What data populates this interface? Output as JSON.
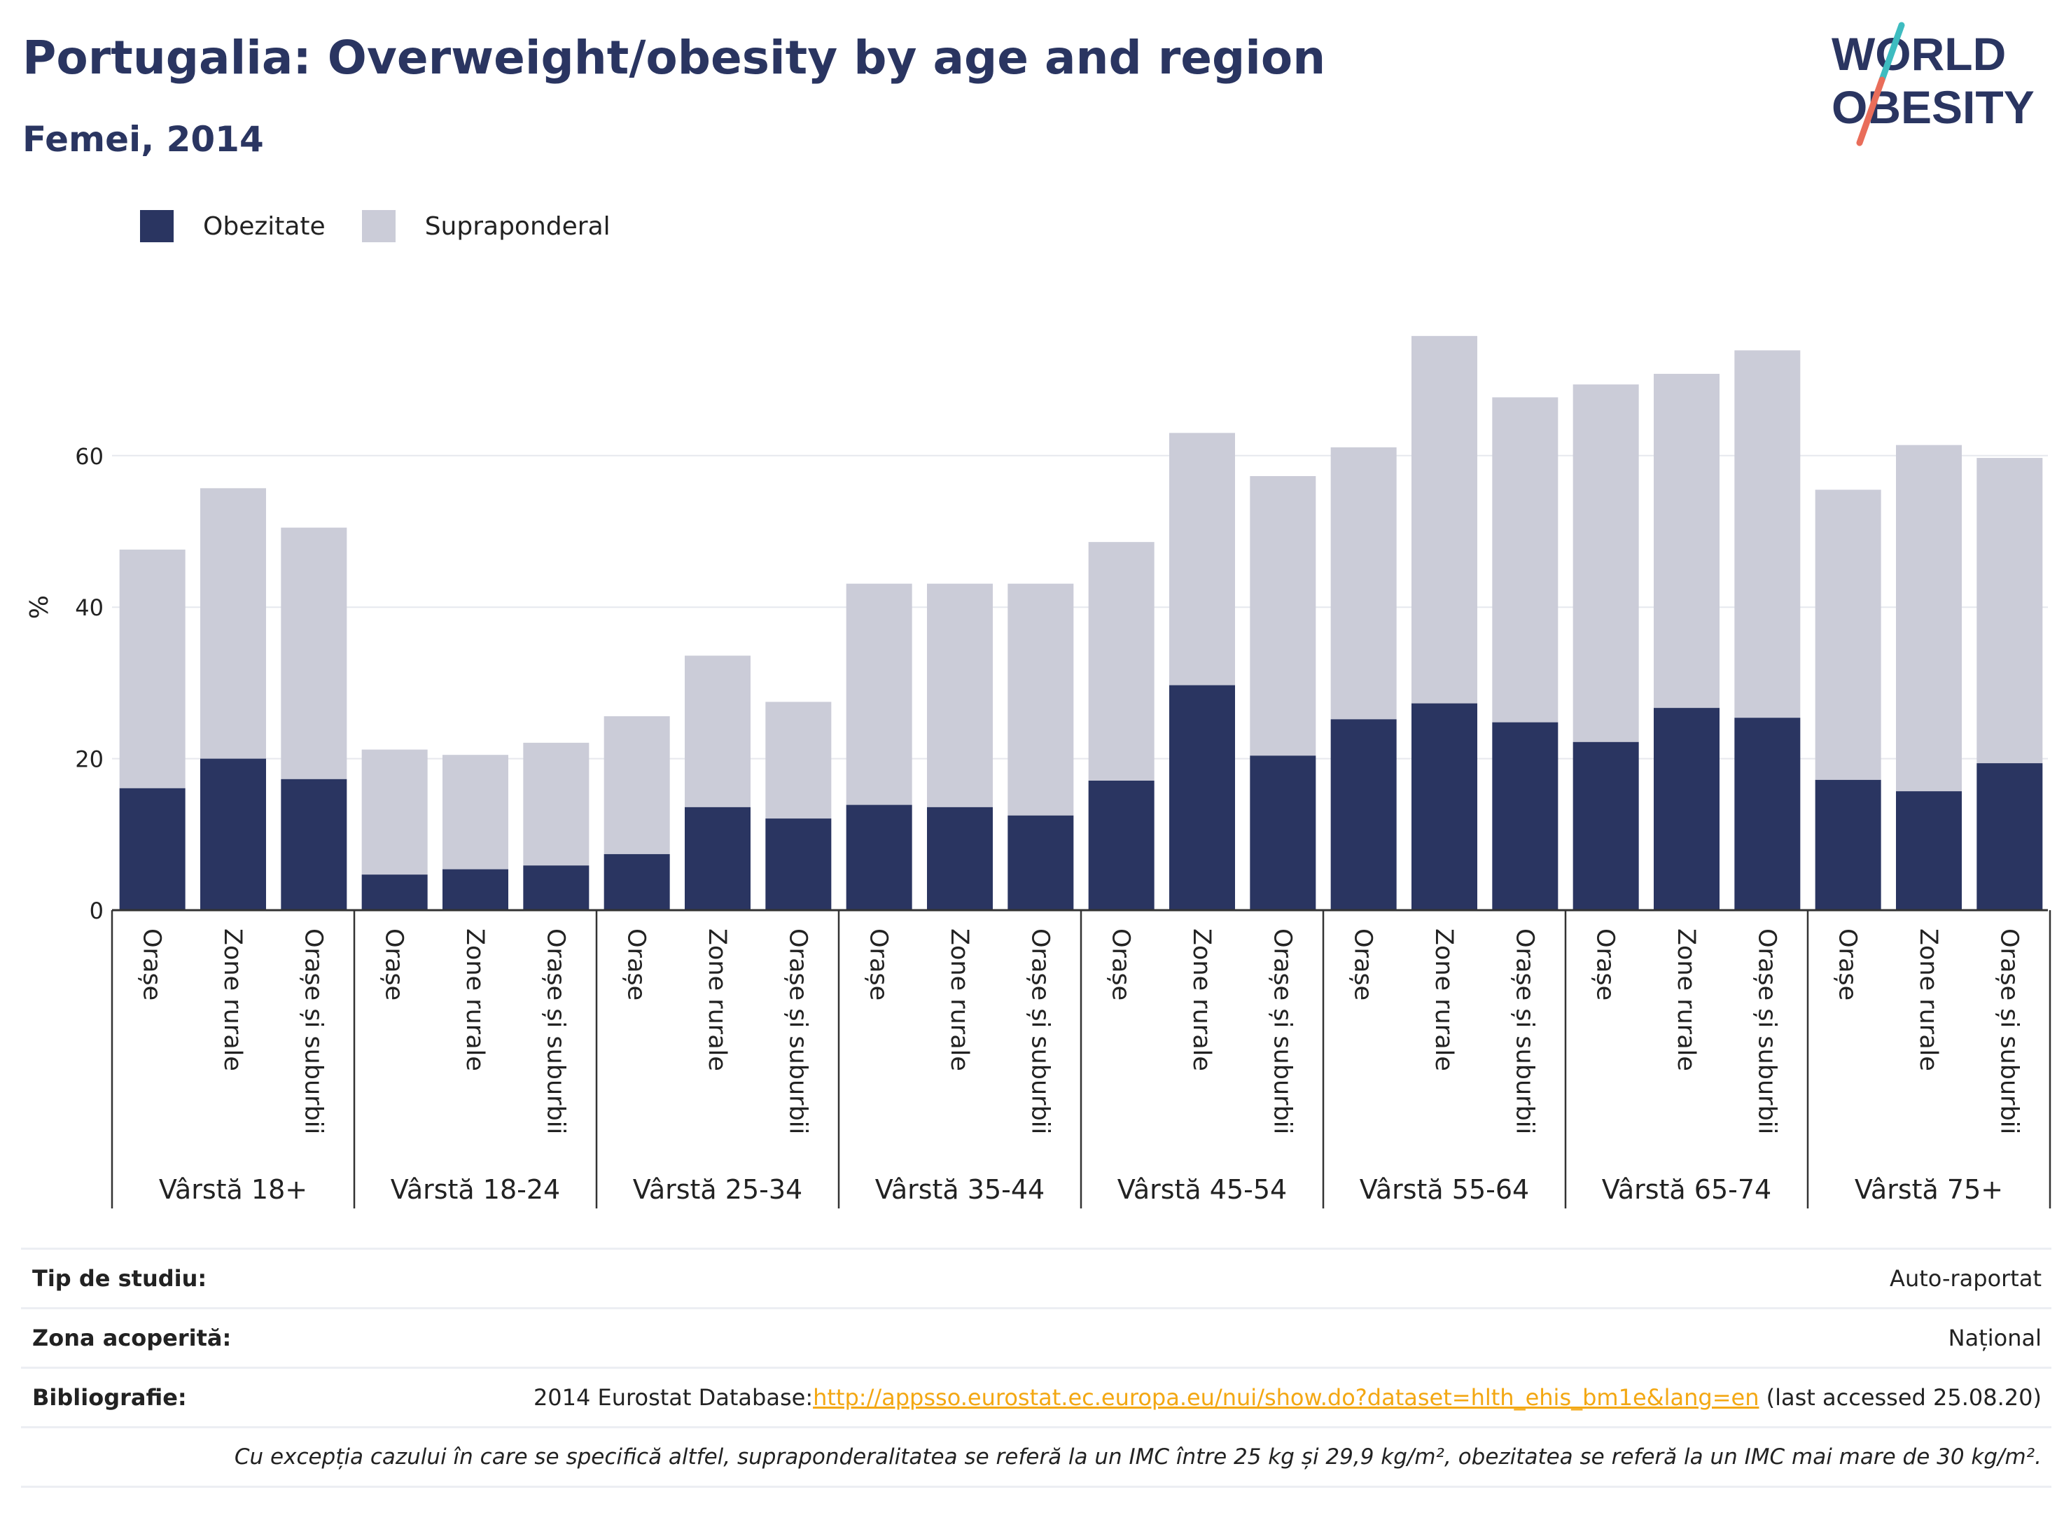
{
  "header": {
    "title": "Portugalia: Overweight/obesity by age and region",
    "subtitle": "Femei, 2014"
  },
  "logo": {
    "line1": "WORLD",
    "line2": "OBESITY"
  },
  "legend": [
    {
      "label": "Obezitate",
      "color": "#2a3561"
    },
    {
      "label": "Supraponderal",
      "color": "#cbccd8"
    }
  ],
  "chart_data": {
    "type": "bar",
    "stacked": true,
    "ylabel": "%",
    "ylim": [
      0,
      80
    ],
    "yticks": [
      0,
      20,
      40,
      60
    ],
    "grid": true,
    "legend_position": "top-left",
    "groups": [
      "Vârstă 18+",
      "Vârstă 18-24",
      "Vârstă 25-34",
      "Vârstă 35-44",
      "Vârstă 45-54",
      "Vârstă 55-64",
      "Vârstă 65-74",
      "Vârstă 75+"
    ],
    "subcategories": [
      "Orașe",
      "Zone rurale",
      "Orașe și suburbii"
    ],
    "series": [
      {
        "name": "Obezitate",
        "color": "#2a3561",
        "values": [
          16.1,
          20.0,
          17.3,
          4.7,
          5.4,
          5.9,
          7.4,
          13.6,
          12.1,
          13.9,
          13.6,
          12.5,
          17.1,
          29.7,
          20.4,
          25.2,
          27.3,
          24.8,
          22.2,
          26.7,
          25.4,
          17.2,
          15.7,
          19.4
        ]
      },
      {
        "name": "Supraponderal",
        "color": "#cbccd8",
        "values": [
          31.5,
          35.7,
          33.2,
          16.5,
          15.1,
          16.2,
          18.2,
          20.0,
          15.4,
          29.2,
          29.5,
          30.6,
          31.5,
          33.3,
          36.9,
          35.9,
          48.5,
          42.9,
          47.2,
          44.1,
          48.5,
          38.3,
          45.7,
          40.3
        ]
      }
    ]
  },
  "meta": {
    "study_type_label": "Tip de studiu:",
    "study_type_value": "Auto-raportat",
    "coverage_label": "Zona acoperită:",
    "coverage_value": "Național",
    "bibliography_label": "Bibliografie:",
    "bibliography_prefix": "2014 Eurostat Database:",
    "bibliography_link": "http://appsso.eurostat.ec.europa.eu/nui/show.do?dataset=hlth_ehis_bm1e&lang=en",
    "bibliography_suffix": " (last accessed 25.08.20)",
    "note": "Cu excepția cazului în care se specifică altfel, supraponderalitatea se referă la un IMC între 25 kg și 29,9 kg/m², obezitatea se referă la un IMC mai mare de 30 kg/m²."
  }
}
